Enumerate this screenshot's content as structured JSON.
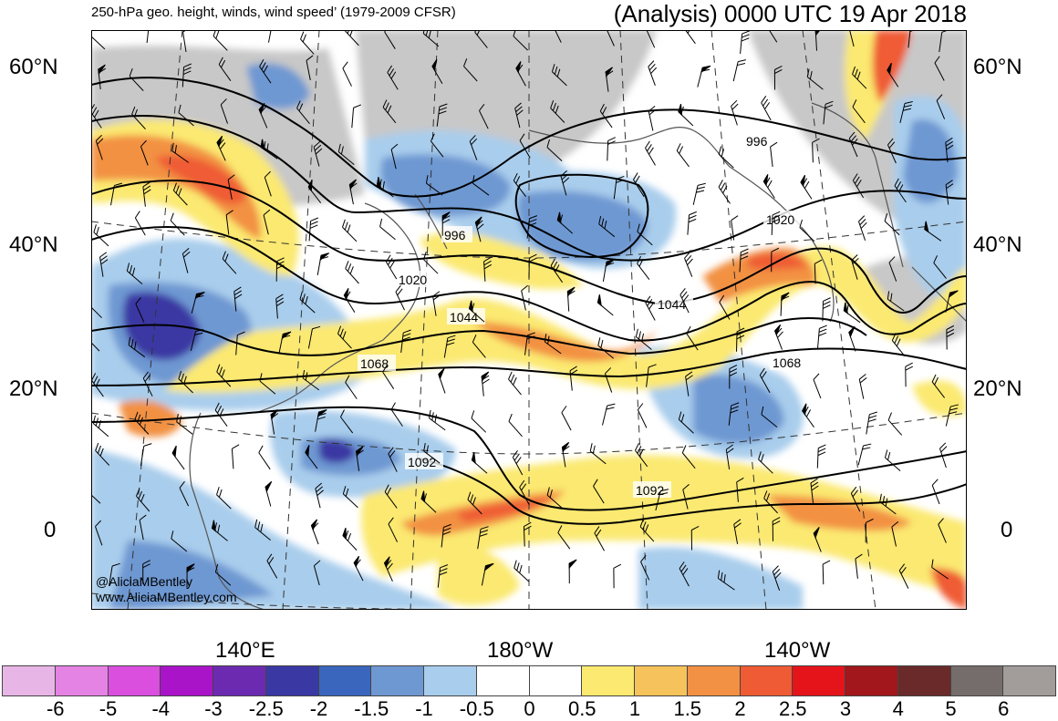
{
  "header": {
    "left_title": "250-hPa geo. height, winds, wind speed’ (1979-2009 CFSR)",
    "right_title": "(Analysis) 0000 UTC 19 Apr 2018"
  },
  "axes": {
    "lat_labels_left": [
      "60°N",
      "40°N",
      "20°N",
      "0"
    ],
    "lat_labels_right": [
      "60°N",
      "40°N",
      "20°N",
      "0"
    ],
    "lon_labels": [
      "140°E",
      "180°W",
      "140°W"
    ]
  },
  "contours": {
    "labels": [
      "996",
      "1020",
      "996",
      "1020",
      "1044",
      "1044",
      "1068",
      "1068",
      "1092",
      "1092"
    ]
  },
  "credits": {
    "handle": "@AliciaMBentley",
    "website": "www.AliciaMBentley.com"
  },
  "colorbar": {
    "colors": [
      "#e8b6e6",
      "#e583e4",
      "#da4fdd",
      "#aa14c8",
      "#6c2ab0",
      "#3a39a3",
      "#3a67bd",
      "#6e98d2",
      "#a9cdec",
      "#ffffff",
      "#ffffff",
      "#fbe971",
      "#f6c25b",
      "#f29143",
      "#ef5b34",
      "#e5141b",
      "#a1171c",
      "#6b2a2a",
      "#756d6b",
      "#a29c9a"
    ],
    "tick_labels": [
      "-6",
      "-5",
      "-4",
      "-3",
      "-2.5",
      "-2",
      "-1.5",
      "-1",
      "-0.5",
      "0",
      "0.5",
      "1",
      "1.5",
      "2",
      "2.5",
      "3",
      "4",
      "5",
      "6"
    ]
  }
}
